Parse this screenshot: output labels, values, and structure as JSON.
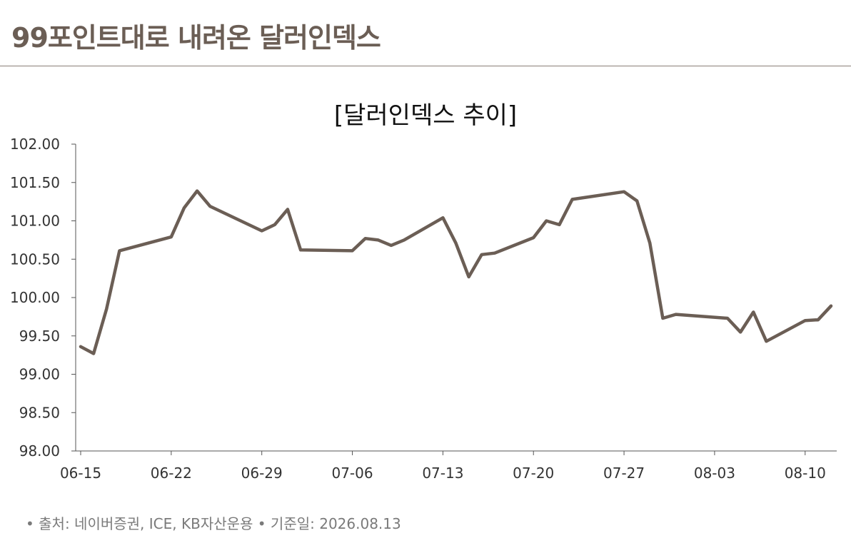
{
  "headline": "99포인트대로 내려온 달러인덱스",
  "source": "• 출처: 네이버증권, ICE, KB자산운용 • 기준일: 2026.08.13",
  "colors": {
    "line": "#6b5e55",
    "axis": "#555555",
    "headline": "#6b5e55"
  },
  "chart_data": {
    "type": "line",
    "title": "[달러인덱스 추이]",
    "xlabel": "",
    "ylabel": "",
    "ylim": [
      98.0,
      102.0
    ],
    "xlim": [
      "2026-06-15",
      "2026-08-12"
    ],
    "y_ticks": [
      "98.00",
      "98.50",
      "99.00",
      "99.50",
      "100.00",
      "100.50",
      "101.00",
      "101.50",
      "102.00"
    ],
    "x_ticks": [
      {
        "date": "2026-06-15",
        "label": "06-15"
      },
      {
        "date": "2026-06-22",
        "label": "06-22"
      },
      {
        "date": "2026-06-29",
        "label": "06-29"
      },
      {
        "date": "2026-07-06",
        "label": "07-06"
      },
      {
        "date": "2026-07-13",
        "label": "07-13"
      },
      {
        "date": "2026-07-20",
        "label": "07-20"
      },
      {
        "date": "2026-07-27",
        "label": "07-27"
      },
      {
        "date": "2026-08-03",
        "label": "08-03"
      },
      {
        "date": "2026-08-10",
        "label": "08-10"
      }
    ],
    "grid": false,
    "series": [
      {
        "points": [
          [
            "2026-06-15",
            99.36
          ],
          [
            "2026-06-16",
            99.27
          ],
          [
            "2026-06-17",
            99.85
          ],
          [
            "2026-06-18",
            100.61
          ],
          [
            "2026-06-22",
            100.79
          ],
          [
            "2026-06-23",
            101.17
          ],
          [
            "2026-06-24",
            101.39
          ],
          [
            "2026-06-25",
            101.19
          ],
          [
            "2026-06-29",
            100.87
          ],
          [
            "2026-06-30",
            100.95
          ],
          [
            "2026-07-01",
            101.15
          ],
          [
            "2026-07-02",
            100.62
          ],
          [
            "2026-07-06",
            100.61
          ],
          [
            "2026-07-07",
            100.77
          ],
          [
            "2026-07-08",
            100.75
          ],
          [
            "2026-07-09",
            100.68
          ],
          [
            "2026-07-10",
            100.75
          ],
          [
            "2026-07-13",
            101.04
          ],
          [
            "2026-07-14",
            100.71
          ],
          [
            "2026-07-15",
            100.27
          ],
          [
            "2026-07-16",
            100.56
          ],
          [
            "2026-07-17",
            100.58
          ],
          [
            "2026-07-20",
            100.78
          ],
          [
            "2026-07-21",
            101.0
          ],
          [
            "2026-07-22",
            100.95
          ],
          [
            "2026-07-23",
            101.28
          ],
          [
            "2026-07-27",
            101.38
          ],
          [
            "2026-07-28",
            101.26
          ],
          [
            "2026-07-29",
            100.71
          ],
          [
            "2026-07-30",
            99.73
          ],
          [
            "2026-07-31",
            99.78
          ],
          [
            "2026-08-04",
            99.73
          ],
          [
            "2026-08-05",
            99.55
          ],
          [
            "2026-08-06",
            99.81
          ],
          [
            "2026-08-07",
            99.43
          ],
          [
            "2026-08-10",
            99.7
          ],
          [
            "2026-08-11",
            99.71
          ],
          [
            "2026-08-12",
            99.89
          ]
        ]
      }
    ]
  }
}
